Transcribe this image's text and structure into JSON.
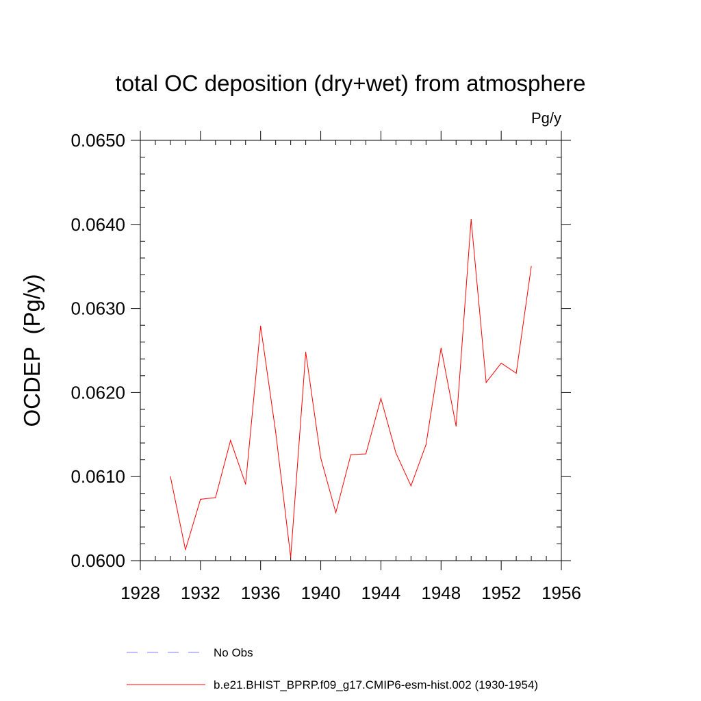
{
  "chart_data": {
    "type": "line",
    "title": "total OC deposition (dry+wet) from atmosphere",
    "units": "Pg/y",
    "xlabel": "",
    "ylabel": "OCDEP  (Pg/y)",
    "xlim": [
      1928,
      1956
    ],
    "ylim": [
      0.06,
      0.065
    ],
    "x_ticks": [
      1928,
      1932,
      1936,
      1940,
      1944,
      1948,
      1952,
      1956
    ],
    "x_tick_labels": [
      "1928",
      "1932",
      "1936",
      "1940",
      "1944",
      "1948",
      "1952",
      "1956"
    ],
    "y_ticks": [
      0.06,
      0.061,
      0.062,
      0.063,
      0.064,
      0.065
    ],
    "y_tick_labels": [
      "0.0600",
      "0.0610",
      "0.0620",
      "0.0630",
      "0.0640",
      "0.0650"
    ],
    "x_minor_step": 1,
    "y_minor_step": 0.0002,
    "grid": false,
    "legend_position": "bottom",
    "series": [
      {
        "name": "b.e21.BHIST_BPRP.f09_g17.CMIP6-esm-hist.002 (1930-1954)",
        "color": "#ff0000",
        "dash": "solid",
        "x": [
          1930,
          1931,
          1932,
          1933,
          1934,
          1935,
          1936,
          1937,
          1938,
          1939,
          1940,
          1941,
          1942,
          1943,
          1944,
          1945,
          1946,
          1947,
          1948,
          1949,
          1950,
          1951,
          1952,
          1953,
          1954
        ],
        "values": [
          0.061,
          0.06013,
          0.06073,
          0.06075,
          0.06143,
          0.06091,
          0.06279,
          0.06153,
          0.06004,
          0.06248,
          0.06122,
          0.06057,
          0.06126,
          0.06127,
          0.06193,
          0.06128,
          0.06089,
          0.06138,
          0.06253,
          0.0616,
          0.06406,
          0.06212,
          0.06235,
          0.06223,
          0.0635
        ]
      }
    ],
    "legend": [
      {
        "label": "No Obs",
        "color": "#7f7fff",
        "dash": "dashed"
      },
      {
        "label": "b.e21.BHIST_BPRP.f09_g17.CMIP6-esm-hist.002 (1930-1954)",
        "color": "#ff0000",
        "dash": "solid"
      }
    ]
  }
}
